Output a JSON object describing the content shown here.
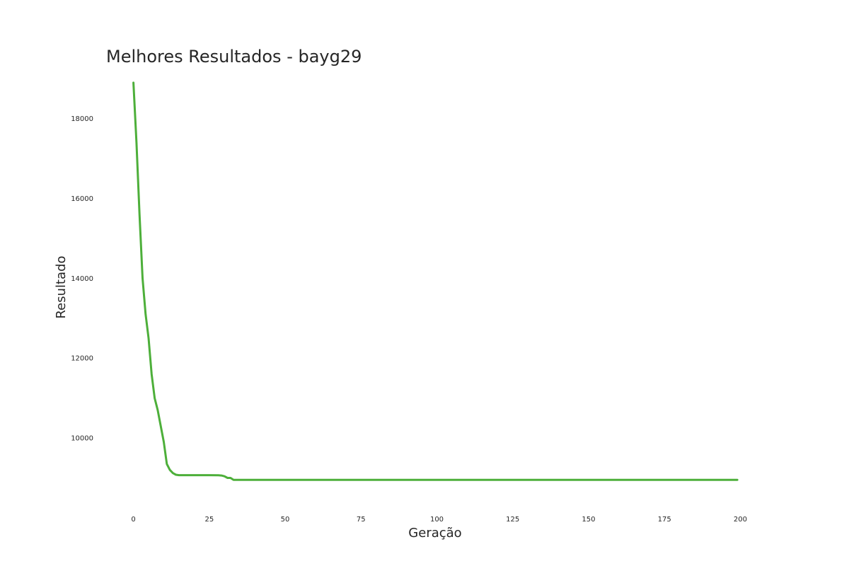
{
  "chart_data": {
    "type": "line",
    "title": "Melhores Resultados - bayg29",
    "xlabel": "Geração",
    "ylabel": "Resultado",
    "xlim": [
      -9,
      209
    ],
    "ylim": [
      8300,
      19200
    ],
    "xticks": [
      0,
      25,
      50,
      75,
      100,
      125,
      150,
      175,
      200
    ],
    "yticks": [
      10000,
      12000,
      14000,
      16000,
      18000
    ],
    "grid": false,
    "series": [
      {
        "color": "#4daf3a",
        "x": [
          0,
          1,
          2,
          3,
          4,
          5,
          6,
          7,
          8,
          9,
          10,
          11,
          12,
          13,
          14,
          15,
          20,
          25,
          28,
          29,
          30,
          31,
          32,
          33,
          40,
          50,
          75,
          100,
          125,
          150,
          175,
          199
        ],
        "y": [
          18900,
          17400,
          15600,
          14000,
          13100,
          12500,
          11600,
          11000,
          10700,
          10300,
          9900,
          9350,
          9200,
          9120,
          9080,
          9070,
          9070,
          9070,
          9065,
          9060,
          9040,
          9000,
          9000,
          8950,
          8950,
          8950,
          8950,
          8950,
          8950,
          8950,
          8950,
          8950
        ]
      }
    ]
  }
}
